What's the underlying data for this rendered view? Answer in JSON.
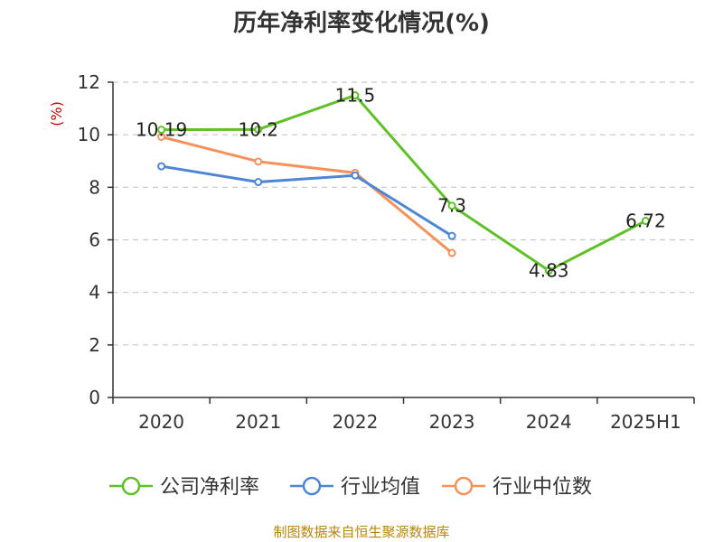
{
  "chart_data": {
    "type": "line",
    "title": "历年净利率变化情况(%)",
    "ylabel": "(%)",
    "xlabel": "",
    "categories": [
      "2020",
      "2021",
      "2022",
      "2023",
      "2024",
      "2025H1"
    ],
    "ylim": [
      0,
      12
    ],
    "yticks": [
      0,
      2,
      4,
      6,
      8,
      10,
      12
    ],
    "grid": true,
    "legend_position": "bottom",
    "series": [
      {
        "name": "公司净利率",
        "color": "#5ec125",
        "values": [
          10.19,
          10.2,
          11.5,
          7.3,
          4.83,
          6.72
        ],
        "labels": [
          "10.19",
          "10.2",
          "11.5",
          "7.3",
          "4.83",
          "6.72"
        ]
      },
      {
        "name": "行业均值",
        "color": "#4e86d6",
        "values": [
          8.8,
          8.2,
          8.45,
          6.15,
          null,
          null
        ]
      },
      {
        "name": "行业中位数",
        "color": "#f5915a",
        "values": [
          9.92,
          8.98,
          8.55,
          5.5,
          null,
          null
        ]
      }
    ]
  },
  "source": "制图数据来自恒生聚源数据库"
}
